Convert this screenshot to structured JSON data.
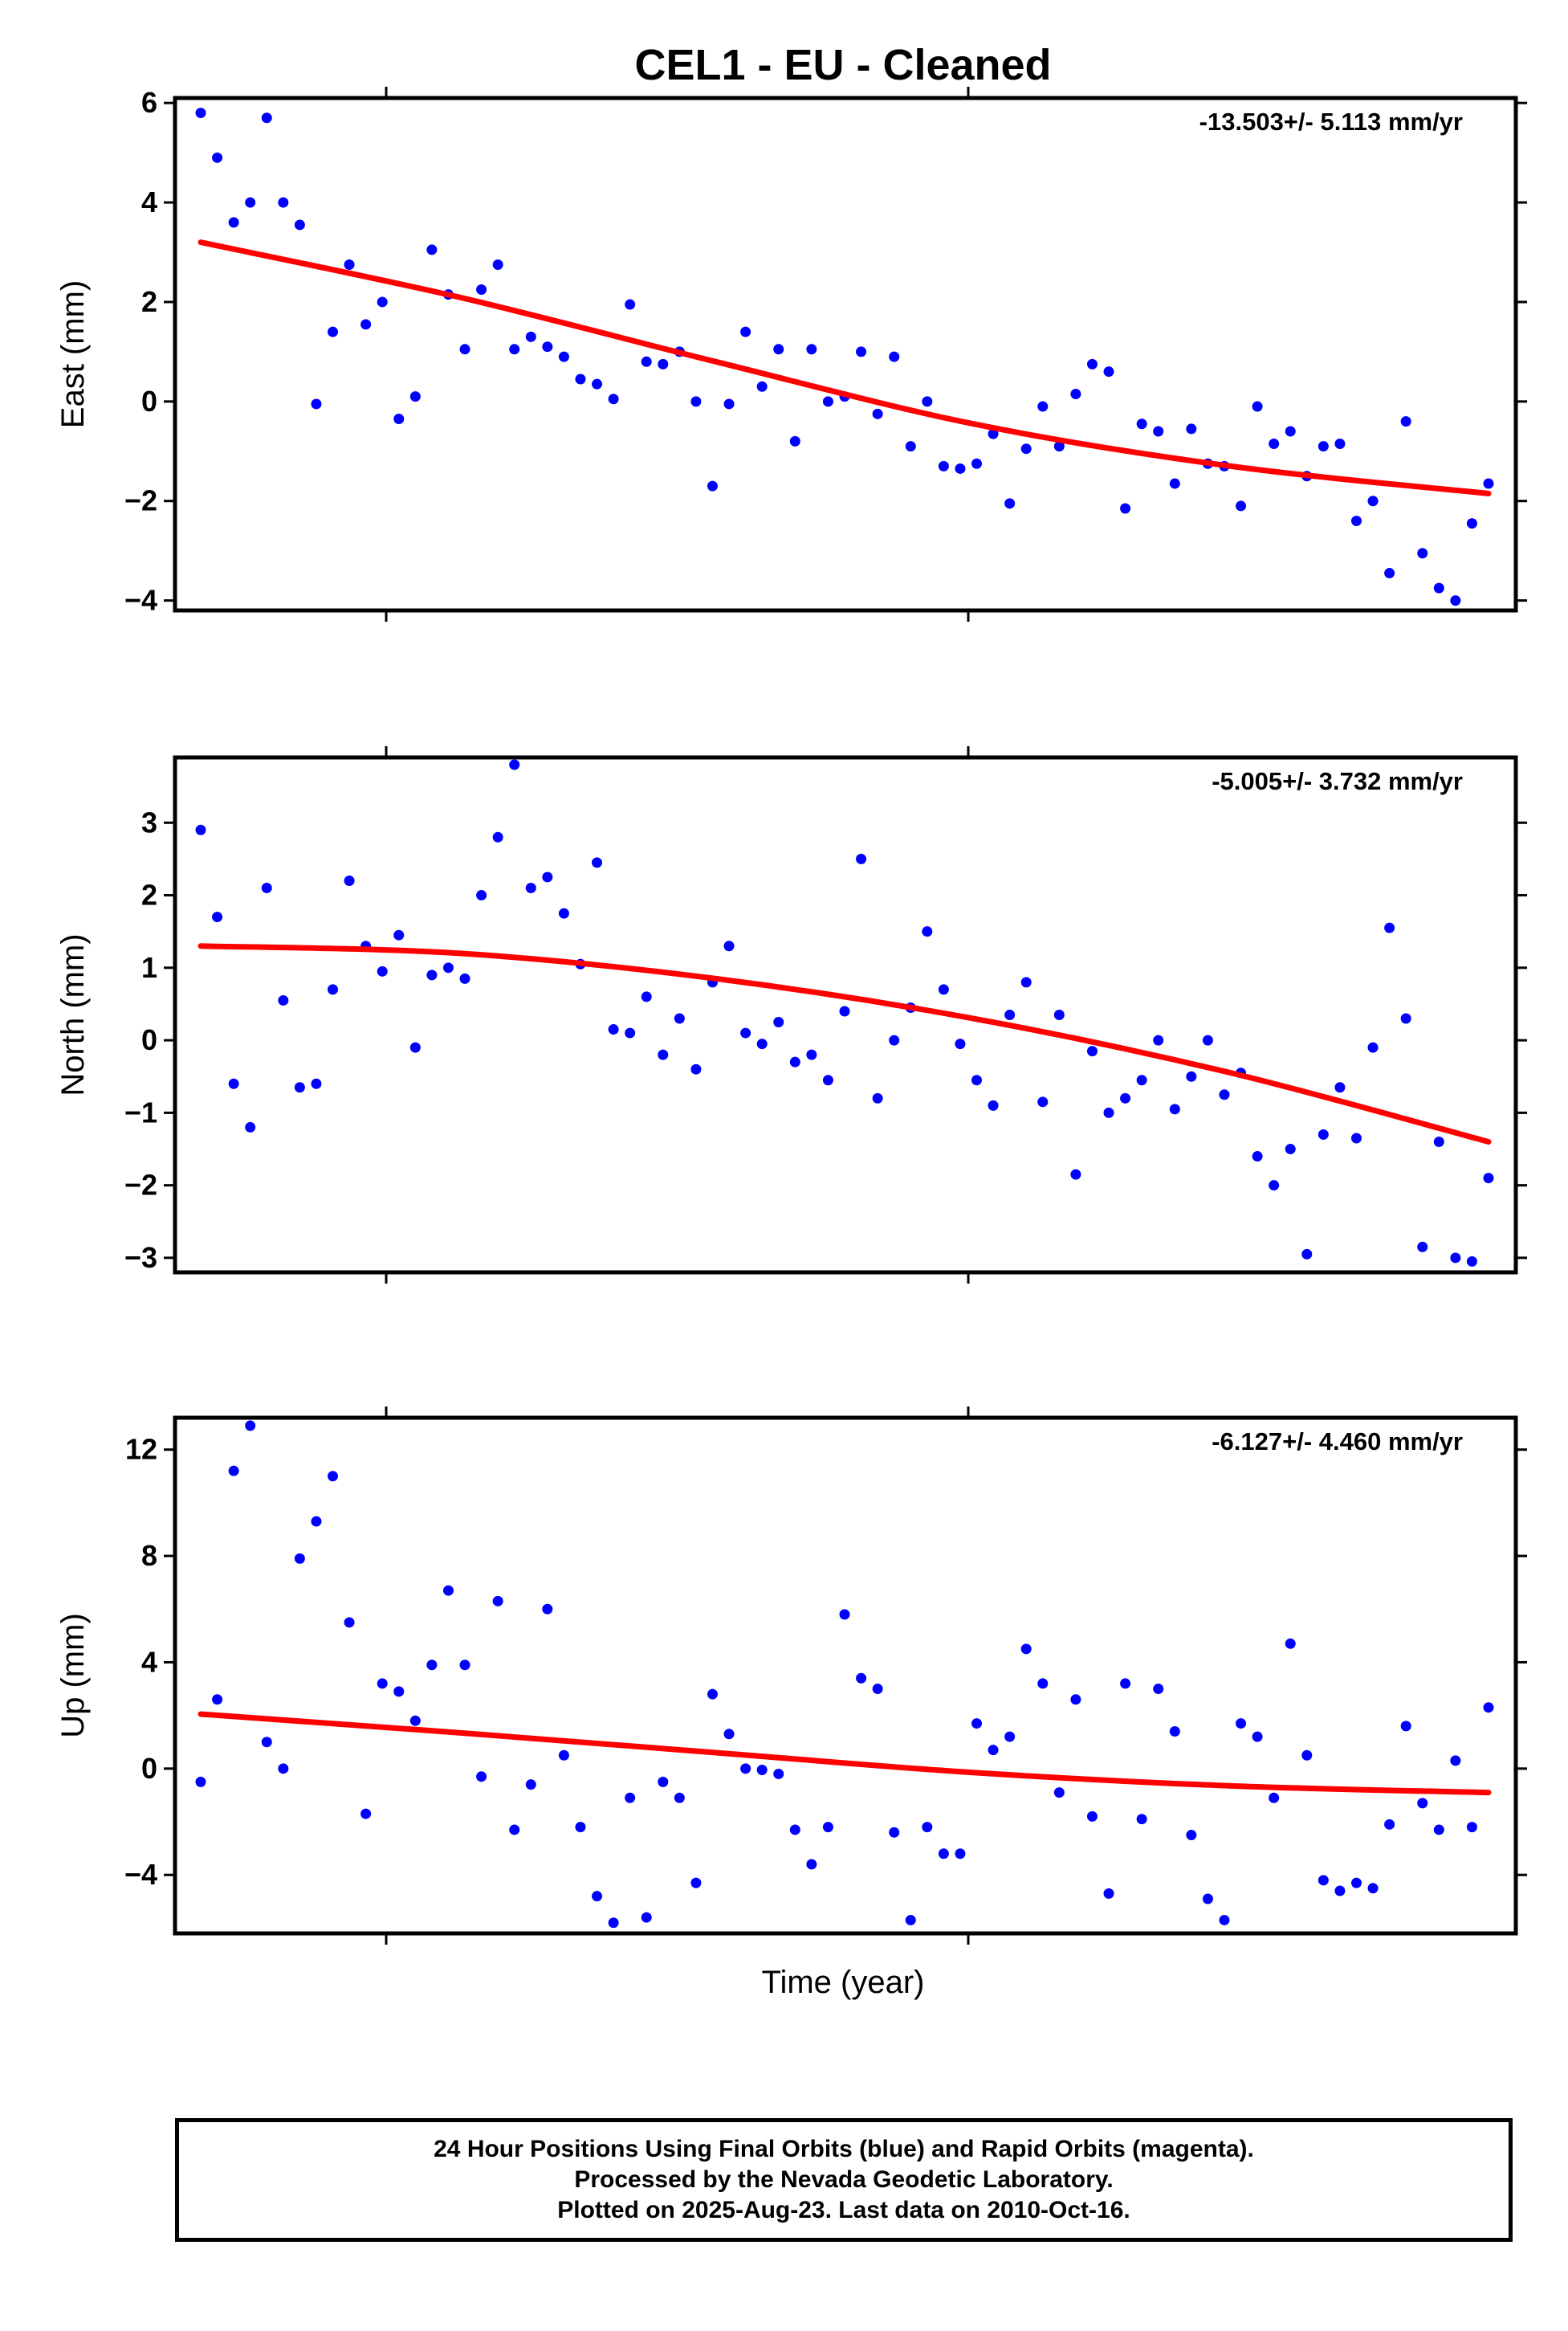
{
  "title": "CEL1  - EU - Cleaned",
  "xlabel": "Time (year)",
  "colors": {
    "final_orbits": "#0000ff",
    "fit_line": "#ff0000",
    "frame": "#000000"
  },
  "footer": {
    "line1": "24 Hour Positions Using Final Orbits (blue) and Rapid Orbits (magenta).",
    "line2": "Processed by the Nevada Geodetic Laboratory.",
    "line3": "Plotted on 2025-Aug-23. Last data on 2010-Oct-16."
  },
  "chart_data": [
    {
      "type": "scatter",
      "ylabel": "East (mm)",
      "rate": "-13.503+/- 5.113 mm/yr",
      "ylim": [
        -4.2,
        6.1
      ],
      "yticks": [
        -4,
        -2,
        0,
        2,
        4,
        6
      ],
      "series": [
        {
          "values": [
            5.8,
            4.9,
            3.6,
            4.0,
            5.7,
            4.0,
            3.55,
            -0.05,
            1.4,
            2.75,
            1.55,
            2.0,
            -0.35,
            0.1,
            3.05,
            2.15,
            1.05,
            2.25,
            2.75,
            1.05,
            1.3,
            1.1,
            0.9,
            0.45,
            0.35,
            0.05,
            1.95,
            0.8,
            0.75,
            1.0,
            0.0,
            -1.7,
            -0.05,
            1.4,
            0.3,
            1.05,
            -0.8,
            1.05,
            0.0,
            0.1,
            1.0,
            -0.25,
            0.9,
            -0.9,
            0.0,
            -1.3,
            -1.35,
            -1.25,
            -0.65,
            -2.05,
            -0.95,
            -0.1,
            -0.9,
            0.15,
            0.75,
            0.6,
            -2.15,
            -0.45,
            -0.6,
            -1.65,
            -0.55,
            -1.25,
            -1.3,
            -2.1,
            -0.1,
            -0.85,
            -0.6,
            -1.5,
            -0.9,
            -0.85,
            -2.4,
            -2.0,
            -3.45,
            -0.4,
            -3.05,
            -3.75,
            -4.0,
            -2.45,
            -1.65
          ]
        }
      ],
      "fit": [
        3.2,
        2.1,
        0.8,
        -0.45,
        -1.3,
        -1.85
      ]
    },
    {
      "type": "scatter",
      "ylabel": "North (mm)",
      "rate": "-5.005+/- 3.732 mm/yr",
      "ylim": [
        -3.2,
        3.9
      ],
      "yticks": [
        -3,
        -2,
        -1,
        0,
        1,
        2,
        3
      ],
      "series": [
        {
          "values": [
            2.9,
            1.7,
            -0.6,
            -1.2,
            2.1,
            0.55,
            -0.65,
            -0.6,
            0.7,
            2.2,
            1.3,
            0.95,
            1.45,
            -0.1,
            0.9,
            1.0,
            0.85,
            2.0,
            2.8,
            3.8,
            2.1,
            2.25,
            1.75,
            1.05,
            2.45,
            0.15,
            0.1,
            0.6,
            -0.2,
            0.3,
            -0.4,
            0.8,
            1.3,
            0.1,
            -0.05,
            0.25,
            -0.3,
            -0.2,
            -0.55,
            0.4,
            2.5,
            -0.8,
            0.0,
            0.45,
            1.5,
            0.7,
            -0.05,
            -0.55,
            -0.9,
            0.35,
            0.8,
            -0.85,
            0.35,
            -1.85,
            -0.15,
            -1.0,
            -0.8,
            -0.55,
            0.0,
            -0.95,
            -0.5,
            0.0,
            -0.75,
            -0.45,
            -1.6,
            -2.0,
            -1.5,
            -2.95,
            -1.3,
            -0.65,
            -1.35,
            -0.1,
            1.55,
            0.3,
            -2.85,
            -1.4,
            -3.0,
            -3.05,
            -1.9
          ]
        }
      ],
      "fit": [
        1.3,
        1.2,
        0.85,
        0.3,
        -0.45,
        -1.4
      ]
    },
    {
      "type": "scatter",
      "ylabel": "Up (mm)",
      "rate": "-6.127+/- 4.460 mm/yr",
      "ylim": [
        -6.2,
        13.2
      ],
      "yticks": [
        -4,
        0,
        4,
        8,
        12
      ],
      "series": [
        {
          "values": [
            -0.5,
            2.6,
            11.2,
            12.9,
            1.0,
            0.0,
            7.9,
            9.3,
            11.0,
            5.5,
            -1.7,
            3.2,
            2.9,
            1.8,
            3.9,
            6.7,
            3.9,
            -0.3,
            6.3,
            -2.3,
            -0.6,
            6.0,
            0.5,
            -2.2,
            -4.8,
            -5.8,
            -1.1,
            -5.6,
            -0.5,
            -1.1,
            -4.3,
            2.8,
            1.3,
            0.0,
            -0.05,
            -0.2,
            -2.3,
            -3.6,
            -2.2,
            5.8,
            3.4,
            3.0,
            -2.4,
            -5.7,
            -2.2,
            -3.2,
            -3.2,
            1.7,
            0.7,
            1.2,
            4.5,
            3.2,
            -0.9,
            2.6,
            -1.8,
            -4.7,
            3.2,
            -1.9,
            3.0,
            1.4,
            -2.5,
            -4.9,
            -5.7,
            1.7,
            1.2,
            -1.1,
            4.7,
            0.5,
            -4.2,
            -4.6,
            -4.3,
            -4.5,
            -2.1,
            1.6,
            -1.3,
            -2.3,
            0.3,
            -2.2,
            2.3
          ]
        }
      ],
      "fit": [
        2.05,
        1.35,
        0.6,
        -0.15,
        -0.65,
        -0.9
      ]
    }
  ]
}
